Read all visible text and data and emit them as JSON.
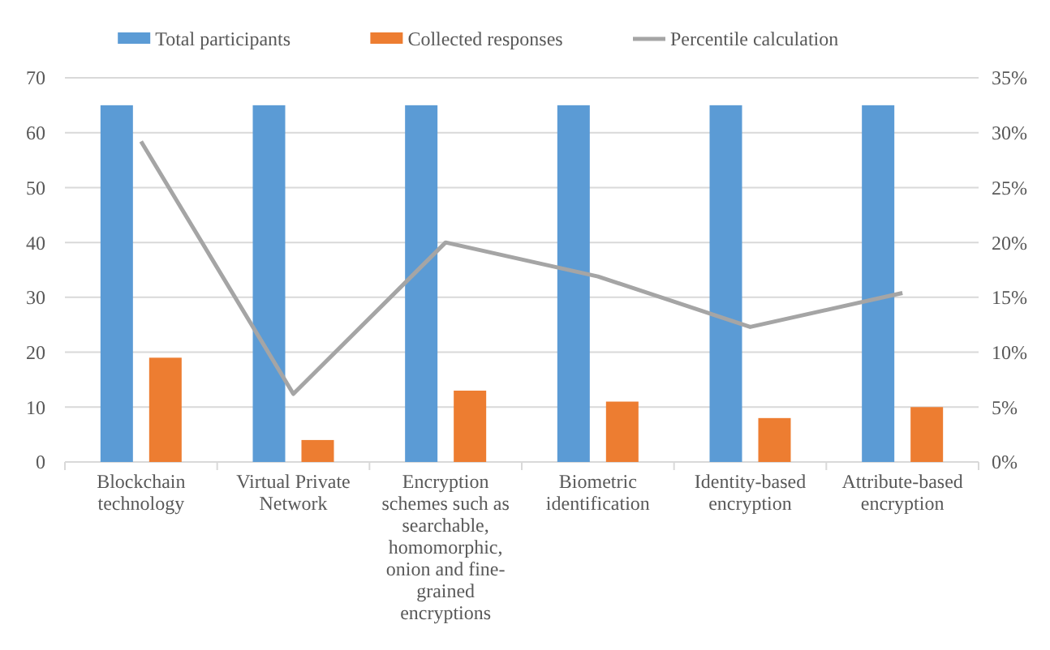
{
  "chart_data": {
    "type": "bar",
    "categories": [
      "Blockchain technology",
      "Virtual Private Network",
      "Encryption schemes such as searchable, homomorphic, onion and fine-grained encryptions",
      "Biometric identification",
      "Identity-based encryption",
      "Attribute-based encryption"
    ],
    "series": [
      {
        "name": "Total participants",
        "color": "#5b9bd5",
        "values": [
          65,
          65,
          65,
          65,
          65,
          65
        ]
      },
      {
        "name": "Collected responses",
        "color": "#ed7d31",
        "values": [
          19,
          4,
          13,
          11,
          8,
          10
        ]
      },
      {
        "name": "Percentile calculation",
        "type": "line",
        "axis": "y2",
        "color": "#a5a5a5",
        "values": [
          29.2,
          6.2,
          20,
          16.9,
          12.3,
          15.4
        ]
      }
    ],
    "ylim": [
      0,
      70
    ],
    "yticks": [
      0,
      10,
      20,
      30,
      40,
      50,
      60,
      70
    ],
    "y2lim": [
      0,
      35
    ],
    "y2ticks": [
      {
        "value": 0,
        "label": "0%"
      },
      {
        "value": 5,
        "label": "5%"
      },
      {
        "value": 10,
        "label": "10%"
      },
      {
        "value": 15,
        "label": "15%"
      },
      {
        "value": 20,
        "label": "20%"
      },
      {
        "value": 25,
        "label": "25%"
      },
      {
        "value": 30,
        "label": "30%"
      },
      {
        "value": 35,
        "label": "35%"
      }
    ],
    "grid": "y",
    "legend": "top"
  }
}
